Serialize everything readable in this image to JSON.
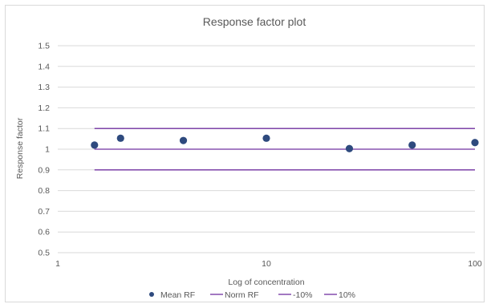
{
  "chart_data": {
    "type": "scatter",
    "title": "Response factor plot",
    "xlabel": "Log of concentration",
    "ylabel": "Response factor",
    "x_scale": "log",
    "xlim": [
      1,
      100
    ],
    "ylim": [
      0.5,
      1.5
    ],
    "x_ticks": [
      "1",
      "10",
      "100"
    ],
    "y_ticks": [
      "0.5",
      "0.6",
      "0.7",
      "0.8",
      "0.9",
      "1",
      "1.1",
      "1.2",
      "1.3",
      "1.4",
      "1.5"
    ],
    "grid": true,
    "legend_position": "bottom",
    "colors": {
      "marker": "#2e4a7e",
      "lines": "#7030a0",
      "grid": "#d9d9d9",
      "text": "#595959"
    },
    "series": [
      {
        "name": "Mean RF",
        "kind": "scatter",
        "x": [
          1.5,
          2,
          4,
          10,
          25,
          50,
          100
        ],
        "y": [
          1.02,
          1.053,
          1.042,
          1.053,
          1.003,
          1.02,
          1.032
        ]
      },
      {
        "name": "Norm RF",
        "kind": "line",
        "x": [
          1.5,
          100
        ],
        "y": [
          1.0,
          1.0
        ]
      },
      {
        "name": "-10%",
        "kind": "line",
        "x": [
          1.5,
          100
        ],
        "y": [
          0.9,
          0.9
        ]
      },
      {
        "name": "10%",
        "kind": "line",
        "x": [
          1.5,
          100
        ],
        "y": [
          1.1,
          1.1
        ]
      }
    ]
  }
}
